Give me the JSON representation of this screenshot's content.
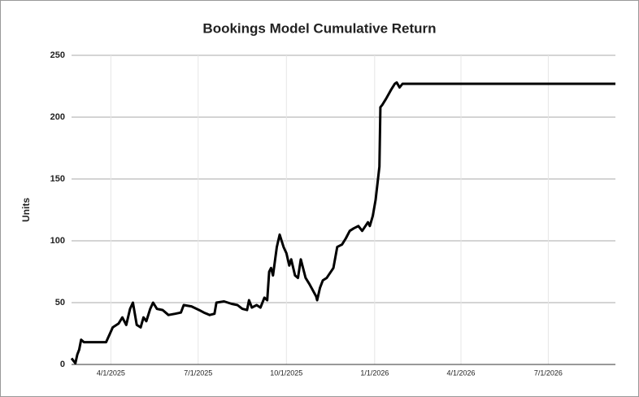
{
  "chart_data": {
    "type": "line",
    "title": "Bookings Model Cumulative Return",
    "y_label": "Units",
    "x": [
      "2/19/2025",
      "2/23/2025",
      "2/25/2025",
      "2/27/2025",
      "3/1/2025",
      "3/4/2025",
      "3/27/2025",
      "4/3/2025",
      "4/9/2025",
      "4/13/2025",
      "4/17/2025",
      "4/21/2025",
      "4/24/2025",
      "4/28/2025",
      "5/2/2025",
      "5/5/2025",
      "5/8/2025",
      "5/12/2025",
      "5/15/2025",
      "5/19/2025",
      "5/25/2025",
      "5/31/2025",
      "6/7/2025",
      "6/13/2025",
      "6/16/2025",
      "6/24/2025",
      "7/2/2025",
      "7/7/2025",
      "7/13/2025",
      "7/18/2025",
      "7/20/2025",
      "7/28/2025",
      "8/5/2025",
      "8/11/2025",
      "8/16/2025",
      "8/21/2025",
      "8/23/2025",
      "8/26/2025",
      "8/31/2025",
      "9/4/2025",
      "9/8/2025",
      "9/11/2025",
      "9/13/2025",
      "9/15/2025",
      "9/17/2025",
      "9/21/2025",
      "9/24/2025",
      "9/28/2025",
      "10/1/2025",
      "10/4/2025",
      "10/6/2025",
      "10/10/2025",
      "10/13/2025",
      "10/16/2025",
      "10/21/2025",
      "10/25/2025",
      "11/1/2025",
      "11/2/2025",
      "11/5/2025",
      "11/8/2025",
      "11/12/2025",
      "11/19/2025",
      "11/23/2025",
      "11/28/2025",
      "12/2/2025",
      "12/6/2025",
      "12/10/2025",
      "12/15/2025",
      "12/19/2025",
      "12/25/2025",
      "12/27/2025",
      "12/30/2025",
      "1/2/2026",
      "1/6/2026",
      "1/7/2026",
      "1/9/2026",
      "1/13/2026",
      "1/18/2026",
      "1/22/2026",
      "1/24/2026",
      "1/27/2026",
      "1/30/2026",
      "9/9/2026"
    ],
    "series": [
      {
        "name": "Cumulative Return",
        "color": "#000000",
        "values": [
          5,
          1,
          8,
          12,
          20,
          18,
          18,
          30,
          33,
          38,
          32,
          45,
          50,
          32,
          30,
          38,
          35,
          45,
          50,
          45,
          44,
          40,
          41,
          42,
          48,
          47,
          44,
          42,
          40,
          41,
          50,
          51,
          49,
          48,
          45,
          44,
          52,
          46,
          48,
          46,
          54,
          52,
          75,
          78,
          72,
          95,
          105,
          95,
          90,
          80,
          85,
          72,
          70,
          85,
          70,
          65,
          55,
          52,
          62,
          68,
          70,
          78,
          95,
          97,
          102,
          108,
          110,
          112,
          108,
          115,
          112,
          120,
          133,
          160,
          208,
          210,
          215,
          222,
          227,
          228,
          224,
          227,
          227
        ]
      }
    ],
    "xlim": [
      "2/19/2025",
      "9/9/2026"
    ],
    "xticks": [
      "4/1/2025",
      "7/1/2025",
      "10/1/2025",
      "1/1/2026",
      "4/1/2026",
      "7/1/2026"
    ],
    "ylim": [
      0,
      250
    ],
    "yticks": [
      0,
      50,
      100,
      150,
      200,
      250
    ],
    "grid": true
  }
}
